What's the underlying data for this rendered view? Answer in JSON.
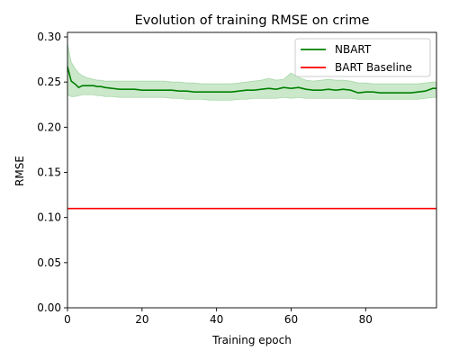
{
  "chart_data": {
    "type": "line",
    "title": "Evolution of training RMSE on crime",
    "xlabel": "Training epoch",
    "ylabel": "RMSE",
    "xlim": [
      0,
      99
    ],
    "ylim": [
      0.0,
      0.305
    ],
    "x_ticks": [
      0,
      20,
      40,
      60,
      80
    ],
    "x_tick_labels": [
      "0",
      "20",
      "40",
      "60",
      "80"
    ],
    "y_ticks": [
      0.0,
      0.05,
      0.1,
      0.15,
      0.2,
      0.25,
      0.3
    ],
    "y_tick_labels": [
      "0.00",
      "0.05",
      "0.10",
      "0.15",
      "0.20",
      "0.25",
      "0.30"
    ],
    "grid": false,
    "legend_position": "top-right",
    "series": [
      {
        "name": "NBART",
        "color": "#008000",
        "band_color": "#a8d8a8",
        "x": [
          0,
          1,
          2,
          3,
          4,
          5,
          6,
          7,
          8,
          9,
          10,
          12,
          14,
          16,
          18,
          20,
          22,
          24,
          26,
          28,
          30,
          32,
          34,
          36,
          38,
          40,
          42,
          44,
          46,
          48,
          50,
          52,
          54,
          56,
          58,
          60,
          62,
          64,
          66,
          68,
          70,
          72,
          74,
          76,
          78,
          80,
          82,
          84,
          86,
          88,
          90,
          92,
          94,
          96,
          98,
          99
        ],
        "values": [
          0.267,
          0.251,
          0.248,
          0.244,
          0.246,
          0.246,
          0.246,
          0.246,
          0.245,
          0.245,
          0.244,
          0.243,
          0.242,
          0.242,
          0.242,
          0.241,
          0.241,
          0.241,
          0.241,
          0.241,
          0.24,
          0.24,
          0.239,
          0.239,
          0.239,
          0.239,
          0.239,
          0.239,
          0.24,
          0.241,
          0.241,
          0.242,
          0.243,
          0.242,
          0.244,
          0.243,
          0.244,
          0.242,
          0.241,
          0.241,
          0.242,
          0.241,
          0.242,
          0.241,
          0.238,
          0.239,
          0.239,
          0.238,
          0.238,
          0.238,
          0.238,
          0.238,
          0.239,
          0.24,
          0.243,
          0.243
        ],
        "upper": [
          0.292,
          0.272,
          0.265,
          0.26,
          0.257,
          0.255,
          0.254,
          0.253,
          0.252,
          0.252,
          0.251,
          0.251,
          0.251,
          0.251,
          0.251,
          0.251,
          0.251,
          0.251,
          0.251,
          0.25,
          0.25,
          0.249,
          0.249,
          0.248,
          0.248,
          0.248,
          0.248,
          0.248,
          0.249,
          0.25,
          0.251,
          0.252,
          0.254,
          0.252,
          0.253,
          0.26,
          0.255,
          0.252,
          0.251,
          0.252,
          0.253,
          0.252,
          0.252,
          0.251,
          0.249,
          0.249,
          0.248,
          0.248,
          0.248,
          0.248,
          0.248,
          0.248,
          0.248,
          0.249,
          0.25,
          0.25
        ],
        "lower": [
          0.236,
          0.234,
          0.234,
          0.235,
          0.236,
          0.236,
          0.236,
          0.236,
          0.235,
          0.235,
          0.234,
          0.234,
          0.233,
          0.233,
          0.233,
          0.233,
          0.233,
          0.233,
          0.233,
          0.232,
          0.232,
          0.231,
          0.231,
          0.231,
          0.23,
          0.23,
          0.23,
          0.23,
          0.231,
          0.231,
          0.232,
          0.232,
          0.232,
          0.232,
          0.233,
          0.232,
          0.233,
          0.232,
          0.232,
          0.232,
          0.232,
          0.232,
          0.232,
          0.232,
          0.231,
          0.231,
          0.231,
          0.231,
          0.231,
          0.231,
          0.231,
          0.231,
          0.231,
          0.232,
          0.233,
          0.233
        ]
      },
      {
        "name": "BART Baseline",
        "color": "#ff0000",
        "x": [
          0,
          99
        ],
        "values": [
          0.11,
          0.11
        ]
      }
    ]
  }
}
